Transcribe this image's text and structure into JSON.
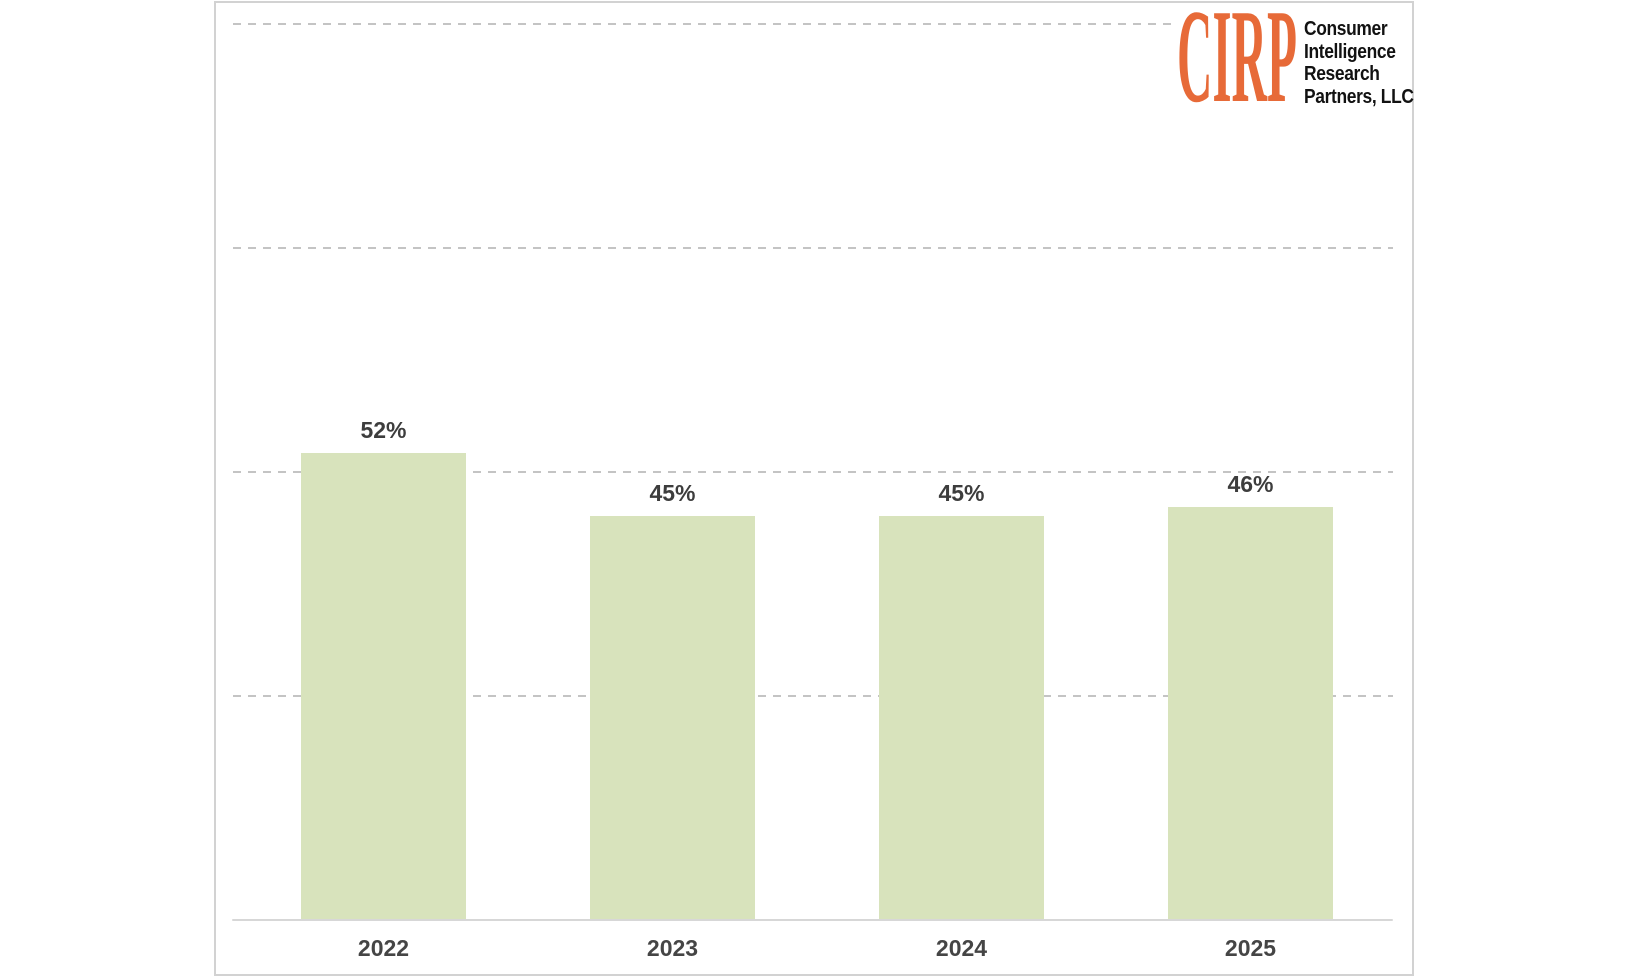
{
  "logo": {
    "mark": "CIRP",
    "mark_color": "#e76a38",
    "org_lines": [
      "Consumer",
      "Intelligence",
      "Research",
      "Partners, LLC"
    ]
  },
  "chart_data": {
    "type": "bar",
    "categories": [
      "2022",
      "2023",
      "2024",
      "2025"
    ],
    "values": [
      52,
      45,
      45,
      46
    ],
    "value_labels": [
      "52%",
      "45%",
      "45%",
      "46%"
    ],
    "title": "",
    "xlabel": "",
    "ylabel": "",
    "ylim": [
      0,
      100
    ],
    "gridline_values": [
      25,
      50,
      75,
      100
    ],
    "gridline_style": "dashed",
    "grid": true,
    "legend_position": "none",
    "bar_color": "#d8e3bc",
    "gridline_color": "#c4c4c4",
    "axis_line_color": "#d7d7d7",
    "value_label_color": "#3d3d3d",
    "axis_label_color": "#454545"
  }
}
